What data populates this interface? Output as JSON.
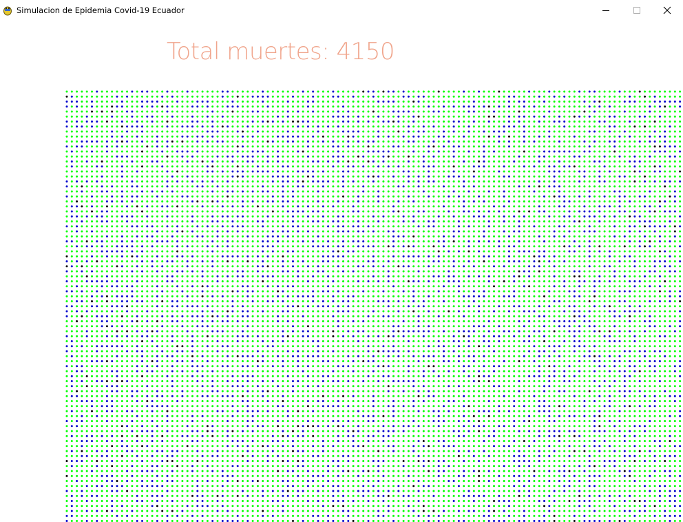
{
  "window": {
    "title": "Simulacion de Epidemia Covid-19 Ecuador",
    "icon": "pygame-snake-icon"
  },
  "controls": {
    "minimize_icon": "minimize-icon",
    "maximize_icon": "maximize-icon",
    "close_icon": "close-icon"
  },
  "simulation": {
    "deaths_label": "Total muertes:",
    "deaths_value": "4150",
    "colors": {
      "healthy": "#00ff00",
      "infected": "#0000cc",
      "dead": "#000000",
      "counter_text": "#f0a58c"
    }
  }
}
